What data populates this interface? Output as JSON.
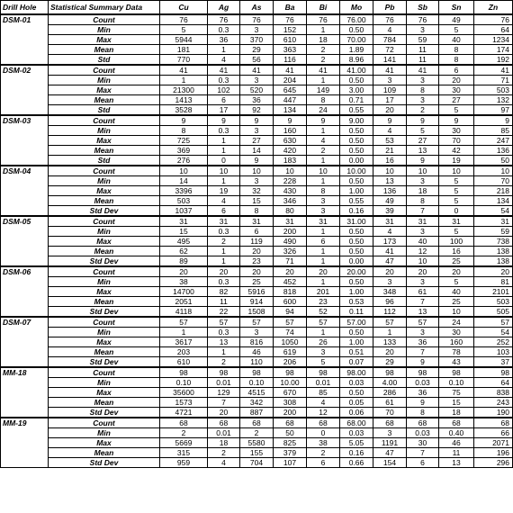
{
  "headers": [
    "Drill Hole",
    "Statistical Summary Data",
    "Cu",
    "Ag",
    "As",
    "Ba",
    "Bi",
    "Mo",
    "Pb",
    "Sb",
    "Sn",
    "Zn"
  ],
  "groups": [
    {
      "hole": "DSM-01",
      "rows": [
        {
          "stat": "Count",
          "vals": [
            "76",
            "76",
            "76",
            "76",
            "76",
            "76.00",
            "76",
            "76",
            "49",
            "76"
          ]
        },
        {
          "stat": "Min",
          "vals": [
            "5",
            "0.3",
            "3",
            "152",
            "1",
            "0.50",
            "4",
            "3",
            "5",
            "64"
          ]
        },
        {
          "stat": "Max",
          "vals": [
            "5944",
            "36",
            "370",
            "610",
            "18",
            "70.00",
            "784",
            "59",
            "40",
            "1234"
          ]
        },
        {
          "stat": "Mean",
          "vals": [
            "181",
            "1",
            "29",
            "363",
            "2",
            "1.89",
            "72",
            "11",
            "8",
            "174"
          ]
        },
        {
          "stat": "Std",
          "vals": [
            "770",
            "4",
            "56",
            "116",
            "2",
            "8.96",
            "141",
            "11",
            "8",
            "192"
          ]
        }
      ]
    },
    {
      "hole": "DSM-02",
      "rows": [
        {
          "stat": "Count",
          "vals": [
            "41",
            "41",
            "41",
            "41",
            "41",
            "41.00",
            "41",
            "41",
            "6",
            "41"
          ]
        },
        {
          "stat": "Min",
          "vals": [
            "1",
            "0.3",
            "3",
            "204",
            "1",
            "0.50",
            "3",
            "3",
            "20",
            "71"
          ]
        },
        {
          "stat": "Max",
          "vals": [
            "21300",
            "102",
            "520",
            "645",
            "149",
            "3.00",
            "109",
            "8",
            "30",
            "503"
          ]
        },
        {
          "stat": "Mean",
          "vals": [
            "1413",
            "6",
            "36",
            "447",
            "8",
            "0.71",
            "17",
            "3",
            "27",
            "132"
          ]
        },
        {
          "stat": "Std",
          "vals": [
            "3528",
            "17",
            "92",
            "134",
            "24",
            "0.55",
            "20",
            "2",
            "5",
            "97"
          ]
        }
      ]
    },
    {
      "hole": "DSM-03",
      "rows": [
        {
          "stat": "Count",
          "vals": [
            "9",
            "9",
            "9",
            "9",
            "9",
            "9.00",
            "9",
            "9",
            "9",
            "9"
          ]
        },
        {
          "stat": "Min",
          "vals": [
            "8",
            "0.3",
            "3",
            "160",
            "1",
            "0.50",
            "4",
            "5",
            "30",
            "85"
          ]
        },
        {
          "stat": "Max",
          "vals": [
            "725",
            "1",
            "27",
            "630",
            "4",
            "0.50",
            "53",
            "27",
            "70",
            "247"
          ]
        },
        {
          "stat": "Mean",
          "vals": [
            "369",
            "1",
            "14",
            "420",
            "2",
            "0.50",
            "21",
            "13",
            "42",
            "136"
          ]
        },
        {
          "stat": "Std",
          "vals": [
            "276",
            "0",
            "9",
            "183",
            "1",
            "0.00",
            "16",
            "9",
            "19",
            "50"
          ]
        }
      ]
    },
    {
      "hole": "DSM-04",
      "rows": [
        {
          "stat": "Count",
          "vals": [
            "10",
            "10",
            "10",
            "10",
            "10",
            "10.00",
            "10",
            "10",
            "10",
            "10"
          ]
        },
        {
          "stat": "Min",
          "vals": [
            "14",
            "1",
            "3",
            "228",
            "1",
            "0.50",
            "13",
            "3",
            "5",
            "70"
          ]
        },
        {
          "stat": "Max",
          "vals": [
            "3396",
            "19",
            "32",
            "430",
            "8",
            "1.00",
            "136",
            "18",
            "5",
            "218"
          ]
        },
        {
          "stat": "Mean",
          "vals": [
            "503",
            "4",
            "15",
            "346",
            "3",
            "0.55",
            "49",
            "8",
            "5",
            "134"
          ]
        },
        {
          "stat": "Std Dev",
          "vals": [
            "1037",
            "6",
            "8",
            "80",
            "3",
            "0.16",
            "39",
            "7",
            "0",
            "54"
          ]
        }
      ]
    },
    {
      "hole": "DSM-05",
      "rows": [
        {
          "stat": "Count",
          "vals": [
            "31",
            "31",
            "31",
            "31",
            "31",
            "31.00",
            "31",
            "31",
            "31",
            "31"
          ]
        },
        {
          "stat": "Min",
          "vals": [
            "15",
            "0.3",
            "6",
            "200",
            "1",
            "0.50",
            "4",
            "3",
            "5",
            "59"
          ]
        },
        {
          "stat": "Max",
          "vals": [
            "495",
            "2",
            "119",
            "490",
            "6",
            "0.50",
            "173",
            "40",
            "100",
            "738"
          ]
        },
        {
          "stat": "Mean",
          "vals": [
            "62",
            "1",
            "20",
            "326",
            "1",
            "0.50",
            "41",
            "12",
            "16",
            "138"
          ]
        },
        {
          "stat": "Std Dev",
          "vals": [
            "89",
            "1",
            "23",
            "71",
            "1",
            "0.00",
            "47",
            "10",
            "25",
            "138"
          ]
        }
      ]
    },
    {
      "hole": "DSM-06",
      "rows": [
        {
          "stat": "Count",
          "vals": [
            "20",
            "20",
            "20",
            "20",
            "20",
            "20.00",
            "20",
            "20",
            "20",
            "20"
          ]
        },
        {
          "stat": "Min",
          "vals": [
            "38",
            "0.3",
            "25",
            "452",
            "1",
            "0.50",
            "3",
            "3",
            "5",
            "81"
          ]
        },
        {
          "stat": "Max",
          "vals": [
            "14700",
            "82",
            "5916",
            "818",
            "201",
            "1.00",
            "348",
            "61",
            "40",
            "2101"
          ]
        },
        {
          "stat": "Mean",
          "vals": [
            "2051",
            "11",
            "914",
            "600",
            "23",
            "0.53",
            "96",
            "7",
            "25",
            "503"
          ]
        },
        {
          "stat": "Std Dev",
          "vals": [
            "4118",
            "22",
            "1508",
            "94",
            "52",
            "0.11",
            "112",
            "13",
            "10",
            "505"
          ]
        }
      ]
    },
    {
      "hole": "DSM-07",
      "rows": [
        {
          "stat": "Count",
          "vals": [
            "57",
            "57",
            "57",
            "57",
            "57",
            "57.00",
            "57",
            "57",
            "24",
            "57"
          ]
        },
        {
          "stat": "Min",
          "vals": [
            "1",
            "0.3",
            "3",
            "74",
            "1",
            "0.50",
            "1",
            "3",
            "30",
            "54"
          ]
        },
        {
          "stat": "Max",
          "vals": [
            "3617",
            "13",
            "816",
            "1050",
            "26",
            "1.00",
            "133",
            "36",
            "160",
            "252"
          ]
        },
        {
          "stat": "Mean",
          "vals": [
            "203",
            "1",
            "46",
            "619",
            "3",
            "0.51",
            "20",
            "7",
            "78",
            "103"
          ]
        },
        {
          "stat": "Std Dev",
          "vals": [
            "610",
            "2",
            "110",
            "206",
            "5",
            "0.07",
            "29",
            "9",
            "43",
            "37"
          ]
        }
      ]
    },
    {
      "hole": "MM-18",
      "rows": [
        {
          "stat": "Count",
          "vals": [
            "98",
            "98",
            "98",
            "98",
            "98",
            "98.00",
            "98",
            "98",
            "98",
            "98"
          ]
        },
        {
          "stat": "Min",
          "vals": [
            "0.10",
            "0.01",
            "0.10",
            "10.00",
            "0.01",
            "0.03",
            "4.00",
            "0.03",
            "0.10",
            "64"
          ]
        },
        {
          "stat": "Max",
          "vals": [
            "35600",
            "129",
            "4515",
            "670",
            "85",
            "0.50",
            "286",
            "36",
            "75",
            "838"
          ]
        },
        {
          "stat": "Mean",
          "vals": [
            "1573",
            "7",
            "342",
            "308",
            "4",
            "0.05",
            "61",
            "9",
            "15",
            "243"
          ]
        },
        {
          "stat": "Std Dev",
          "vals": [
            "4721",
            "20",
            "887",
            "200",
            "12",
            "0.06",
            "70",
            "8",
            "18",
            "190"
          ]
        }
      ]
    },
    {
      "hole": "MM-19",
      "rows": [
        {
          "stat": "Count",
          "vals": [
            "68",
            "68",
            "68",
            "68",
            "68",
            "68.00",
            "68",
            "68",
            "68",
            "68"
          ]
        },
        {
          "stat": "Min",
          "vals": [
            "2",
            "0.01",
            "2",
            "50",
            "0",
            "0.03",
            "3",
            "0.03",
            "0.40",
            "66"
          ]
        },
        {
          "stat": "Max",
          "vals": [
            "5669",
            "18",
            "5580",
            "825",
            "38",
            "5.05",
            "1191",
            "30",
            "46",
            "2071"
          ]
        },
        {
          "stat": "Mean",
          "vals": [
            "315",
            "2",
            "155",
            "379",
            "2",
            "0.16",
            "47",
            "7",
            "11",
            "196"
          ]
        },
        {
          "stat": "Std Dev",
          "vals": [
            "959",
            "4",
            "704",
            "107",
            "6",
            "0.66",
            "154",
            "6",
            "13",
            "296"
          ]
        }
      ]
    }
  ]
}
